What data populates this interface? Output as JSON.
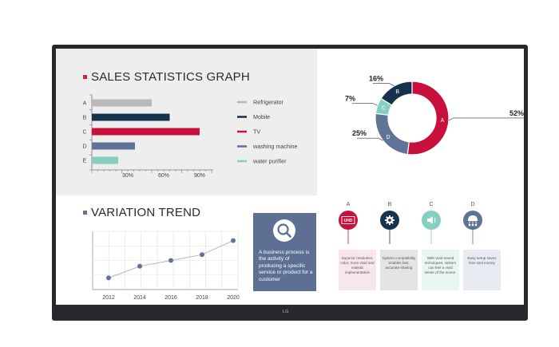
{
  "device": {
    "logo": "LG"
  },
  "sales": {
    "title": "SALES STATISTICS GRAPH",
    "bullet_color": "#d0243a",
    "chart_data": {
      "type": "bar",
      "orientation": "horizontal",
      "categories": [
        "A",
        "B",
        "C",
        "D",
        "E"
      ],
      "values": [
        50,
        65,
        90,
        36,
        22
      ],
      "colors": [
        "#b9b9b9",
        "#17324c",
        "#c8103c",
        "#5f7396",
        "#86cfc0"
      ],
      "xticks": [
        "30%",
        "60%",
        "90%"
      ],
      "tick_values": [
        30,
        60,
        90
      ],
      "xlim": [
        0,
        100
      ],
      "legend_position": "right",
      "legend": [
        "Refrigerator",
        "Mobile",
        "TV",
        "washing machine",
        "water purifier"
      ]
    }
  },
  "donut": {
    "chart_data": {
      "type": "pie",
      "style": "donut",
      "segments": [
        {
          "letter": "A",
          "value": 52,
          "label": "52%",
          "color": "#c8103c"
        },
        {
          "letter": "D",
          "value": 25,
          "label": "25%",
          "color": "#5f7396"
        },
        {
          "letter": "C",
          "value": 7,
          "label": "7%",
          "color": "#86cfc0"
        },
        {
          "letter": "B",
          "value": 16,
          "label": "16%",
          "color": "#17324c"
        }
      ]
    }
  },
  "variation": {
    "title": "VARIATION TREND",
    "bullet_color": "#5f7396",
    "chart_data": {
      "type": "line",
      "x": [
        "2012",
        "2014",
        "2016",
        "2018",
        "2020"
      ],
      "y": [
        1,
        2,
        2.5,
        3,
        4.2
      ],
      "ylim": [
        0,
        5
      ],
      "grid": true,
      "color": "#5f7396"
    }
  },
  "business": {
    "icon": "search-icon",
    "text": "A business process is the activity of producing a specific service or product for a customer"
  },
  "features": [
    {
      "letter": "A",
      "icon": "uhd-icon",
      "badge": "UHD",
      "color": "#c8103c",
      "card_bg": "#f7e6ea",
      "text": "Superior resolution, color, more vivid and realistic implementation"
    },
    {
      "letter": "B",
      "icon": "gear-icon",
      "color": "#17324c",
      "card_bg": "#e4e4e4",
      "text": "System compatibility enables fast, accurate sharing"
    },
    {
      "letter": "C",
      "icon": "speaker-icon",
      "color": "#86cfc0",
      "card_bg": "#e9f5f2",
      "text": "With vivid sound techniques, visitors can feel a vivid sense of the scene."
    },
    {
      "letter": "D",
      "icon": "network-icon",
      "color": "#5f7396",
      "card_bg": "#e8ecf2",
      "text": "Easy setup saves time and money"
    }
  ]
}
